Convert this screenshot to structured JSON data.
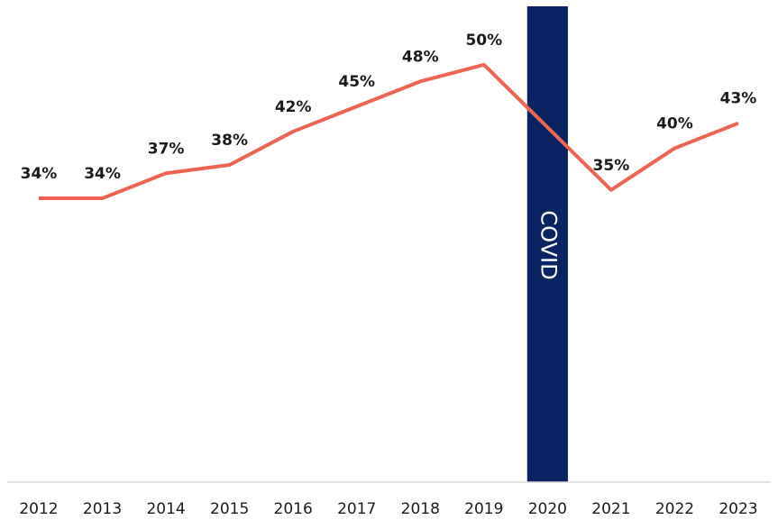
{
  "chart_data": {
    "type": "line",
    "x": [
      2012,
      2013,
      2014,
      2015,
      2016,
      2017,
      2018,
      2019,
      2021,
      2022,
      2023
    ],
    "series": [
      {
        "name": null,
        "color": "#ef6351",
        "values": [
          34,
          34,
          37,
          38,
          42,
          45,
          48,
          50,
          35,
          40,
          43
        ],
        "value_labels": [
          "34%",
          "34%",
          "37%",
          "38%",
          "42%",
          "45%",
          "48%",
          "50%",
          "35%",
          "40%",
          "43%"
        ]
      }
    ],
    "xlim": [
      2012,
      2023
    ],
    "xticks": [
      2012,
      2013,
      2014,
      2015,
      2016,
      2017,
      2018,
      2019,
      2020,
      2021,
      2022,
      2023
    ],
    "ylim": [
      0,
      57
    ],
    "annotations": [
      {
        "x": 2020,
        "text": "COVID",
        "color": "#0a2463"
      }
    ]
  }
}
